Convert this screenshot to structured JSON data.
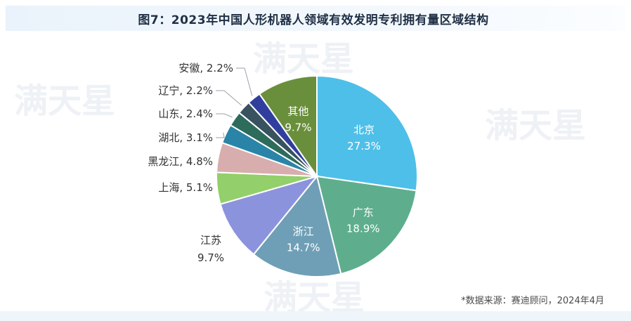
{
  "title": "图7：2023年中国人形机器人领域有效发明专利拥有量区域结构",
  "source": "*数据来源：赛迪顾问，2024年4月",
  "watermark": "满天星",
  "chart_data": {
    "type": "pie",
    "title": "图7：2023年中国人形机器人领域有效发明专利拥有量区域结构",
    "unit": "%",
    "slices": [
      {
        "label": "北京",
        "value": 27.3,
        "value_label": "27.3%",
        "color": "#4ebfe8",
        "label_pos": "inside"
      },
      {
        "label": "广东",
        "value": 18.9,
        "value_label": "18.9%",
        "color": "#5eae8e",
        "label_pos": "inside"
      },
      {
        "label": "浙江",
        "value": 14.7,
        "value_label": "14.7%",
        "color": "#6f9fb6",
        "label_pos": "inside"
      },
      {
        "label": "江苏",
        "value": 9.7,
        "value_label": "9.7%",
        "color": "#8b93dd",
        "label_pos": "outside"
      },
      {
        "label": "上海",
        "value": 5.1,
        "value_label": "5.1%",
        "color": "#93cf6a",
        "label_pos": "outside"
      },
      {
        "label": "黑龙江",
        "value": 4.8,
        "value_label": "4.8%",
        "color": "#d8adae",
        "label_pos": "outside"
      },
      {
        "label": "湖北",
        "value": 3.1,
        "value_label": "3.1%",
        "color": "#2a84a8",
        "label_pos": "outside"
      },
      {
        "label": "山东",
        "value": 2.4,
        "value_label": "2.4%",
        "color": "#2d6b5b",
        "label_pos": "outside"
      },
      {
        "label": "辽宁",
        "value": 2.2,
        "value_label": "2.2%",
        "color": "#38525f",
        "label_pos": "outside"
      },
      {
        "label": "安徽",
        "value": 2.2,
        "value_label": "2.2%",
        "color": "#303f9e",
        "label_pos": "outside"
      },
      {
        "label": "其他",
        "value": 9.7,
        "value_label": "9.7%",
        "color": "#6a8f3c",
        "label_pos": "inside"
      }
    ]
  }
}
